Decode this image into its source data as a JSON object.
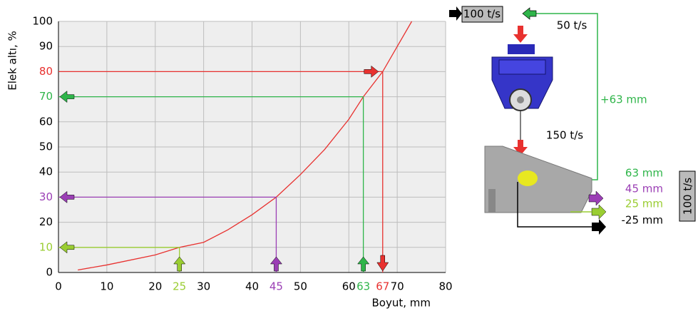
{
  "chart_data": {
    "type": "line",
    "x_label": "Boyut, mm",
    "y_label": "Elek altı, %",
    "x": [
      4,
      10,
      20,
      25,
      30,
      35,
      40,
      45,
      50,
      55,
      60,
      63,
      67,
      70,
      73
    ],
    "values": [
      1,
      3,
      7,
      10,
      12,
      17,
      23,
      30,
      39,
      49,
      61,
      70,
      80,
      90,
      100
    ],
    "color": "#e8312f",
    "xlim": [
      0,
      80
    ],
    "xticks": [
      0,
      10,
      20,
      30,
      40,
      50,
      60,
      70,
      80
    ],
    "ylim": [
      0,
      100
    ],
    "yticks": [
      0,
      10,
      20,
      30,
      40,
      50,
      60,
      70,
      80,
      90,
      100
    ],
    "grid": true,
    "markers": [
      {
        "x": 25,
        "y": 10,
        "color": "#9acd32"
      },
      {
        "x": 45,
        "y": 30,
        "color": "#9b3fb5"
      },
      {
        "x": 63,
        "y": 70,
        "color": "#2fb54a"
      },
      {
        "x": 67,
        "y": 80,
        "color": "#e8312f"
      }
    ]
  },
  "diagram": {
    "feed": "100 t/s",
    "return": "50 t/s",
    "oversize": "+63 mm",
    "crusher_out": "150 t/s",
    "products": [
      "63 mm",
      "45 mm",
      "25 mm",
      "-25 mm"
    ],
    "total": "100 t/s"
  }
}
